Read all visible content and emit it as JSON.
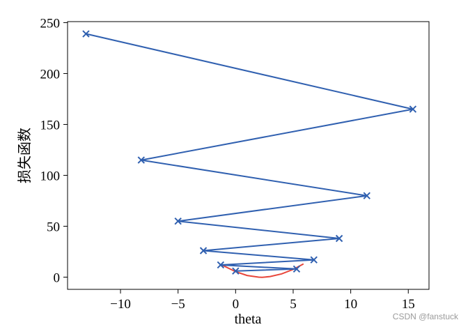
{
  "chart_data": {
    "type": "line",
    "xlabel": "theta",
    "ylabel": "损失函数",
    "xlim": [
      -14.6,
      16.8
    ],
    "ylim": [
      -12,
      251
    ],
    "xticks": [
      -10,
      -5,
      0,
      5,
      10,
      15
    ],
    "yticks": [
      0,
      50,
      100,
      150,
      200,
      250
    ],
    "xtick_labels": [
      "−10",
      "−5",
      "0",
      "5",
      "10",
      "15"
    ],
    "ytick_labels": [
      "0",
      "50",
      "100",
      "150",
      "200",
      "250"
    ],
    "grid": false,
    "curve": {
      "color": "#e8463a",
      "x_range": [
        -1.2,
        5.9
      ],
      "points": [
        [
          -1.2,
          12.0
        ],
        [
          0.0,
          5.4
        ],
        [
          1.0,
          1.6
        ],
        [
          2.0,
          0.0
        ],
        [
          2.3,
          -0.2
        ],
        [
          3.0,
          0.6
        ],
        [
          4.0,
          3.2
        ],
        [
          5.0,
          7.6
        ],
        [
          5.9,
          13.0
        ]
      ]
    },
    "series": [
      {
        "color": "#3060b0",
        "marker": "x",
        "x": [
          -13.0,
          15.4,
          -8.2,
          11.4,
          -5.0,
          9.0,
          -2.8,
          6.8,
          -1.3,
          5.3,
          0.0
        ],
        "y": [
          239,
          165,
          115,
          80,
          55,
          38,
          26,
          17,
          12,
          8,
          6
        ]
      }
    ]
  },
  "watermark": "CSDN @fanstuck"
}
